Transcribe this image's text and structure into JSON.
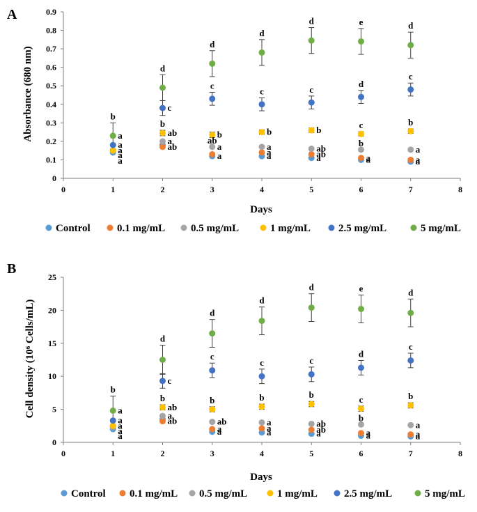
{
  "chart_data": [
    {
      "panel": "A",
      "type": "scatter",
      "ylabel": "Absorbance (680 nm)",
      "xlabel": "Days",
      "xlim": [
        0,
        8
      ],
      "ylim": [
        0,
        0.9
      ],
      "x_ticks": [
        "0",
        "1",
        "2",
        "3",
        "4",
        "5",
        "6",
        "7",
        "8"
      ],
      "y_ticks": [
        "0",
        "0.1",
        "0.2",
        "0.3",
        "0.4",
        "0.5",
        "0.6",
        "0.7",
        "0.8",
        "0.9"
      ],
      "y_tick_values": [
        0,
        0.1,
        0.2,
        0.3,
        0.4,
        0.5,
        0.6,
        0.7,
        0.8,
        0.9
      ],
      "x": [
        1,
        2,
        3,
        4,
        5,
        6,
        7
      ],
      "series": [
        {
          "name": "Control",
          "color": "#5b9bd5",
          "values": [
            0.14,
            0.18,
            0.12,
            0.12,
            0.11,
            0.1,
            0.09
          ],
          "err": [
            0,
            0,
            0,
            0,
            0,
            0,
            0
          ]
        },
        {
          "name": "0.1 mg/mL",
          "color": "#ed7d31",
          "values": [
            0.15,
            0.17,
            0.13,
            0.14,
            0.13,
            0.11,
            0.1
          ],
          "err": [
            0,
            0,
            0,
            0,
            0,
            0,
            0
          ]
        },
        {
          "name": "0.5 mg/mL",
          "color": "#a5a5a5",
          "values": [
            0.15,
            0.2,
            0.17,
            0.17,
            0.16,
            0.155,
            0.155
          ],
          "err": [
            0,
            0,
            0,
            0,
            0,
            0,
            0
          ]
        },
        {
          "name": "1 mg/mL",
          "color": "#ffc000",
          "values": [
            0.15,
            0.245,
            0.235,
            0.25,
            0.26,
            0.24,
            0.255
          ],
          "err": [
            0,
            0.015,
            0.015,
            0.012,
            0.012,
            0.012,
            0.012
          ]
        },
        {
          "name": "2.5 mg/mL",
          "color": "#4472c4",
          "values": [
            0.18,
            0.38,
            0.43,
            0.4,
            0.41,
            0.44,
            0.48
          ],
          "err": [
            0,
            0.04,
            0.035,
            0.035,
            0.035,
            0.035,
            0.035
          ]
        },
        {
          "name": "5 mg/mL",
          "color": "#70ad47",
          "values": [
            0.23,
            0.49,
            0.62,
            0.68,
            0.745,
            0.74,
            0.72
          ],
          "err": [
            0.07,
            0.07,
            0.07,
            0.07,
            0.07,
            0.07,
            0.07
          ]
        }
      ],
      "annotations": [
        {
          "x": 1,
          "series": 5,
          "text": "b",
          "pos": "above"
        },
        {
          "x": 1,
          "series": 5,
          "text": "a",
          "pos": "right"
        },
        {
          "x": 1,
          "series": 4,
          "text": "a",
          "pos": "right"
        },
        {
          "x": 1,
          "series": 3,
          "text": "a",
          "pos": "right"
        },
        {
          "x": 1,
          "series": 2,
          "text": "a",
          "pos": "right",
          "dy": 7
        },
        {
          "x": 1,
          "series": 0,
          "text": "a",
          "pos": "right",
          "dy": 12
        },
        {
          "x": 2,
          "series": 5,
          "text": "d",
          "pos": "above"
        },
        {
          "x": 2,
          "series": 4,
          "text": "c",
          "pos": "right"
        },
        {
          "x": 2,
          "series": 3,
          "text": "b",
          "pos": "above"
        },
        {
          "x": 2,
          "series": 3,
          "text": "ab",
          "pos": "right"
        },
        {
          "x": 2,
          "series": 2,
          "text": "a",
          "pos": "right"
        },
        {
          "x": 2,
          "series": 1,
          "text": "ab",
          "pos": "right"
        },
        {
          "x": 3,
          "series": 5,
          "text": "d",
          "pos": "above"
        },
        {
          "x": 3,
          "series": 4,
          "text": "c",
          "pos": "above"
        },
        {
          "x": 3,
          "series": 3,
          "text": "b",
          "pos": "right"
        },
        {
          "x": 3,
          "series": 2,
          "text": "ab",
          "pos": "above"
        },
        {
          "x": 3,
          "series": 2,
          "text": "a",
          "pos": "right"
        },
        {
          "x": 3,
          "series": 0,
          "text": "a",
          "pos": "right"
        },
        {
          "x": 4,
          "series": 5,
          "text": "d",
          "pos": "above"
        },
        {
          "x": 4,
          "series": 4,
          "text": "c",
          "pos": "above"
        },
        {
          "x": 4,
          "series": 3,
          "text": "b",
          "pos": "right"
        },
        {
          "x": 4,
          "series": 2,
          "text": "a",
          "pos": "right"
        },
        {
          "x": 4,
          "series": 1,
          "text": "a",
          "pos": "right"
        },
        {
          "x": 4,
          "series": 0,
          "text": "a",
          "pos": "right"
        },
        {
          "x": 5,
          "series": 5,
          "text": "d",
          "pos": "above"
        },
        {
          "x": 5,
          "series": 4,
          "text": "c",
          "pos": "above"
        },
        {
          "x": 5,
          "series": 3,
          "text": "b",
          "pos": "right"
        },
        {
          "x": 5,
          "series": 2,
          "text": "ab",
          "pos": "right"
        },
        {
          "x": 5,
          "series": 1,
          "text": "ab",
          "pos": "right"
        },
        {
          "x": 5,
          "series": 0,
          "text": "a",
          "pos": "right"
        },
        {
          "x": 6,
          "series": 5,
          "text": "e",
          "pos": "above"
        },
        {
          "x": 6,
          "series": 4,
          "text": "d",
          "pos": "above"
        },
        {
          "x": 6,
          "series": 3,
          "text": "c",
          "pos": "above"
        },
        {
          "x": 6,
          "series": 2,
          "text": "b",
          "pos": "above"
        },
        {
          "x": 6,
          "series": 1,
          "text": "a",
          "pos": "right"
        },
        {
          "x": 6,
          "series": 0,
          "text": "a",
          "pos": "right"
        },
        {
          "x": 7,
          "series": 5,
          "text": "d",
          "pos": "above"
        },
        {
          "x": 7,
          "series": 4,
          "text": "c",
          "pos": "above"
        },
        {
          "x": 7,
          "series": 3,
          "text": "b",
          "pos": "above"
        },
        {
          "x": 7,
          "series": 2,
          "text": "a",
          "pos": "right"
        },
        {
          "x": 7,
          "series": 1,
          "text": "a",
          "pos": "right"
        },
        {
          "x": 7,
          "series": 0,
          "text": "a",
          "pos": "right"
        }
      ]
    },
    {
      "panel": "B",
      "type": "scatter",
      "ylabel": "Cell density (10⁶ Cells/mL)",
      "xlabel": "Days",
      "xlim": [
        0,
        8
      ],
      "ylim": [
        0,
        25
      ],
      "x_ticks": [
        "0",
        "1",
        "2",
        "3",
        "4",
        "5",
        "6",
        "7",
        "8"
      ],
      "y_ticks": [
        "0",
        "5",
        "10",
        "15",
        "20",
        "25"
      ],
      "y_tick_values": [
        0,
        5,
        10,
        15,
        20,
        25
      ],
      "x": [
        1,
        2,
        3,
        4,
        5,
        6,
        7
      ],
      "series": [
        {
          "name": "Control",
          "color": "#5b9bd5",
          "values": [
            2.0,
            3.5,
            1.6,
            1.5,
            1.3,
            1.0,
            0.9
          ],
          "err": [
            0,
            0,
            0,
            0,
            0,
            0,
            0
          ]
        },
        {
          "name": "0.1 mg/mL",
          "color": "#ed7d31",
          "values": [
            2.5,
            3.2,
            2.0,
            2.1,
            1.9,
            1.4,
            1.2
          ],
          "err": [
            0,
            0,
            0,
            0,
            0,
            0,
            0
          ]
        },
        {
          "name": "0.5 mg/mL",
          "color": "#a5a5a5",
          "values": [
            2.3,
            4.0,
            3.1,
            3.0,
            2.8,
            2.7,
            2.6
          ],
          "err": [
            0,
            0,
            0,
            0,
            0,
            0,
            0
          ]
        },
        {
          "name": "1 mg/mL",
          "color": "#ffc000",
          "values": [
            2.5,
            5.3,
            5.0,
            5.4,
            5.8,
            5.1,
            5.6
          ],
          "err": [
            0,
            0.4,
            0.4,
            0.4,
            0.4,
            0.4,
            0.4
          ]
        },
        {
          "name": "2.5 mg/mL",
          "color": "#4472c4",
          "values": [
            3.3,
            9.3,
            10.9,
            10.0,
            10.3,
            11.3,
            12.4
          ],
          "err": [
            0,
            1.1,
            1.1,
            1.1,
            1.1,
            1.1,
            1.1
          ]
        },
        {
          "name": "5 mg/mL",
          "color": "#70ad47",
          "values": [
            4.8,
            12.5,
            16.5,
            18.4,
            20.4,
            20.2,
            19.6
          ],
          "err": [
            2.2,
            2.2,
            2.1,
            2.1,
            2.1,
            2.1,
            2.1
          ]
        }
      ],
      "annotations": [
        {
          "x": 1,
          "series": 5,
          "text": "b",
          "pos": "above"
        },
        {
          "x": 1,
          "series": 5,
          "text": "a",
          "pos": "right"
        },
        {
          "x": 1,
          "series": 4,
          "text": "a",
          "pos": "right"
        },
        {
          "x": 1,
          "series": 3,
          "text": "a",
          "pos": "right"
        },
        {
          "x": 1,
          "series": 2,
          "text": "a",
          "pos": "right",
          "dy": 6
        },
        {
          "x": 1,
          "series": 0,
          "text": "a",
          "pos": "right",
          "dy": 10
        },
        {
          "x": 2,
          "series": 5,
          "text": "d",
          "pos": "above"
        },
        {
          "x": 2,
          "series": 4,
          "text": "c",
          "pos": "right"
        },
        {
          "x": 2,
          "series": 3,
          "text": "b",
          "pos": "above"
        },
        {
          "x": 2,
          "series": 3,
          "text": "ab",
          "pos": "right"
        },
        {
          "x": 2,
          "series": 2,
          "text": "a",
          "pos": "right"
        },
        {
          "x": 2,
          "series": 1,
          "text": "ab",
          "pos": "right"
        },
        {
          "x": 3,
          "series": 5,
          "text": "d",
          "pos": "above"
        },
        {
          "x": 3,
          "series": 4,
          "text": "c",
          "pos": "above"
        },
        {
          "x": 3,
          "series": 3,
          "text": "b",
          "pos": "above"
        },
        {
          "x": 3,
          "series": 2,
          "text": "ab",
          "pos": "right"
        },
        {
          "x": 3,
          "series": 1,
          "text": "a",
          "pos": "right"
        },
        {
          "x": 3,
          "series": 0,
          "text": "a",
          "pos": "right"
        },
        {
          "x": 4,
          "series": 5,
          "text": "d",
          "pos": "above"
        },
        {
          "x": 4,
          "series": 4,
          "text": "c",
          "pos": "above"
        },
        {
          "x": 4,
          "series": 3,
          "text": "b",
          "pos": "above"
        },
        {
          "x": 4,
          "series": 2,
          "text": "a",
          "pos": "right"
        },
        {
          "x": 4,
          "series": 1,
          "text": "a",
          "pos": "right"
        },
        {
          "x": 4,
          "series": 0,
          "text": "a",
          "pos": "right"
        },
        {
          "x": 5,
          "series": 5,
          "text": "d",
          "pos": "above"
        },
        {
          "x": 5,
          "series": 4,
          "text": "c",
          "pos": "above"
        },
        {
          "x": 5,
          "series": 3,
          "text": "b",
          "pos": "above"
        },
        {
          "x": 5,
          "series": 2,
          "text": "ab",
          "pos": "right"
        },
        {
          "x": 5,
          "series": 1,
          "text": "ab",
          "pos": "right"
        },
        {
          "x": 5,
          "series": 0,
          "text": "a",
          "pos": "right"
        },
        {
          "x": 6,
          "series": 5,
          "text": "e",
          "pos": "above"
        },
        {
          "x": 6,
          "series": 4,
          "text": "d",
          "pos": "above"
        },
        {
          "x": 6,
          "series": 3,
          "text": "c",
          "pos": "above"
        },
        {
          "x": 6,
          "series": 2,
          "text": "b",
          "pos": "above"
        },
        {
          "x": 6,
          "series": 1,
          "text": "a",
          "pos": "right"
        },
        {
          "x": 6,
          "series": 0,
          "text": "a",
          "pos": "right"
        },
        {
          "x": 7,
          "series": 5,
          "text": "d",
          "pos": "above"
        },
        {
          "x": 7,
          "series": 4,
          "text": "c",
          "pos": "above"
        },
        {
          "x": 7,
          "series": 3,
          "text": "b",
          "pos": "above"
        },
        {
          "x": 7,
          "series": 2,
          "text": "a",
          "pos": "right"
        },
        {
          "x": 7,
          "series": 1,
          "text": "a",
          "pos": "right"
        },
        {
          "x": 7,
          "series": 0,
          "text": "a",
          "pos": "right"
        }
      ]
    }
  ]
}
